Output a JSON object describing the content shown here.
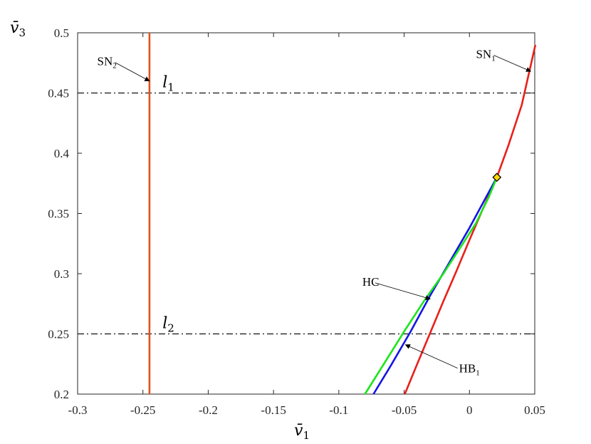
{
  "chart_data": {
    "type": "line",
    "xlabel": "v̄",
    "xlabel_sub": "1",
    "ylabel": "v̄",
    "ylabel_sub": "3",
    "xlim": [
      -0.3,
      0.05
    ],
    "ylim": [
      0.2,
      0.5
    ],
    "x_ticks": [
      -0.3,
      -0.25,
      -0.2,
      -0.15,
      -0.1,
      -0.05,
      0,
      0.05
    ],
    "x_tick_labels": [
      "-0.3",
      "-0.25",
      "-0.2",
      "-0.15",
      "-0.1",
      "-0.05",
      "0",
      "0.05"
    ],
    "y_ticks": [
      0.2,
      0.25,
      0.3,
      0.35,
      0.4,
      0.45,
      0.5
    ],
    "y_tick_labels": [
      "0.2",
      "0.25",
      "0.3",
      "0.35",
      "0.4",
      "0.45",
      "0.5"
    ],
    "grid": false,
    "series": [
      {
        "key": "sn1",
        "color": "#e8201a",
        "x": [
          -0.0495,
          -0.04,
          -0.03,
          -0.02,
          -0.01,
          0.0,
          0.01,
          0.021,
          0.03,
          0.04,
          0.0505
        ],
        "y": [
          0.2,
          0.225,
          0.251,
          0.277,
          0.302,
          0.328,
          0.353,
          0.38,
          0.407,
          0.44,
          0.49
        ]
      },
      {
        "key": "sn2",
        "color": "#e2521c",
        "x": [
          -0.245,
          -0.245
        ],
        "y": [
          0.2,
          0.5
        ]
      },
      {
        "key": "hb1",
        "color": "#1515e6",
        "x": [
          -0.0735,
          -0.06,
          -0.045,
          -0.03,
          -0.015,
          0.0,
          0.01,
          0.021
        ],
        "y": [
          0.2,
          0.224,
          0.252,
          0.282,
          0.31,
          0.338,
          0.358,
          0.38
        ]
      },
      {
        "key": "hc",
        "color": "#1ae61a",
        "x": [
          -0.08,
          -0.065,
          -0.05,
          -0.035,
          -0.02,
          -0.005,
          0.005,
          0.015,
          0.021
        ],
        "y": [
          0.2,
          0.226,
          0.252,
          0.277,
          0.3,
          0.325,
          0.342,
          0.364,
          0.38
        ]
      }
    ],
    "hlines": [
      {
        "key": "l1",
        "y": 0.45,
        "label": "l",
        "sub": "1",
        "label_x": -0.235
      },
      {
        "key": "l2",
        "y": 0.25,
        "label": "l",
        "sub": "2",
        "label_x": -0.235
      }
    ],
    "marker": {
      "x": 0.021,
      "y": 0.38,
      "color": "#ffd700",
      "shape": "diamond"
    },
    "annotations": [
      {
        "key": "sn2-annot",
        "text": "SN",
        "sub": "2",
        "text_x": -0.285,
        "text_y": 0.473,
        "arrow_to": [
          -0.245,
          0.46
        ]
      },
      {
        "key": "sn1-annot",
        "text": "SN",
        "sub": "1",
        "text_x": 0.005,
        "text_y": 0.479,
        "arrow_to": [
          0.047,
          0.468
        ]
      },
      {
        "key": "hc-annot",
        "text": "HC",
        "sub": "",
        "text_x": -0.082,
        "text_y": 0.29,
        "arrow_to": [
          -0.03,
          0.279
        ]
      },
      {
        "key": "hb1-annot",
        "text": "HB",
        "sub": "1",
        "text_x": -0.008,
        "text_y": 0.218,
        "arrow_to": [
          -0.049,
          0.241
        ]
      }
    ]
  }
}
